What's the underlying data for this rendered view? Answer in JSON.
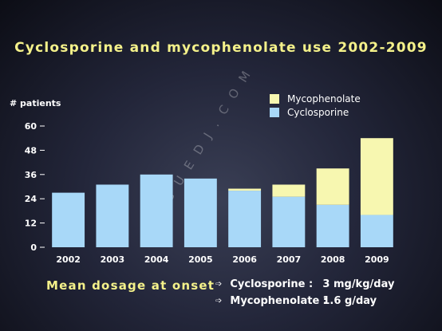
{
  "slide_title": "Cyclosporine and mycophenolate use 2002-2009",
  "watermark": "© M G U E D J . C O M",
  "chart_data": {
    "type": "bar",
    "stacked": true,
    "categories": [
      "2002",
      "2003",
      "2004",
      "2005",
      "2006",
      "2007",
      "2008",
      "2009"
    ],
    "series": [
      {
        "name": "Cyclosporine",
        "color": "#a8d8f8",
        "values": [
          27,
          31,
          36,
          34,
          28,
          25,
          21,
          16
        ]
      },
      {
        "name": "Mycophenolate",
        "color": "#f7f7b0",
        "values": [
          0,
          0,
          0,
          0,
          1,
          6,
          18,
          38
        ]
      }
    ],
    "ylabel": "# patients",
    "xlabel": "",
    "ylim": [
      0,
      60
    ],
    "yticks": [
      0,
      12,
      24,
      36,
      48,
      60
    ],
    "legend_position": "top-right",
    "legend_order": [
      "Mycophenolate",
      "Cyclosporine"
    ]
  },
  "dosage": {
    "heading": "Mean dosage at onset",
    "items": [
      {
        "drug": "Cyclosporine :",
        "value": "3 mg/kg/day"
      },
      {
        "drug": "Mycophenolate :",
        "value": "1.6 g/day"
      }
    ]
  }
}
